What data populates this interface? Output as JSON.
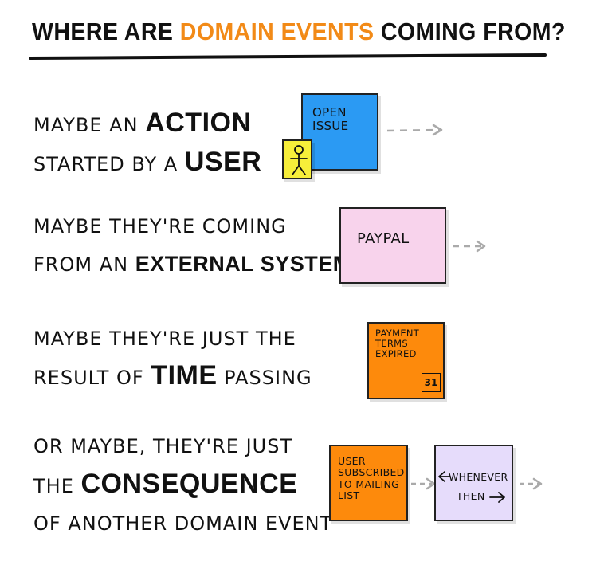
{
  "title": {
    "prefix": "WHERE ARE ",
    "highlight": "DOMAIN EVENTS",
    "suffix": " COMING FROM?",
    "highlight_color": "#f28a17"
  },
  "rows": [
    {
      "line1_a": "MAYBE AN ",
      "line1_b": "ACTION",
      "line2_a": "STARTED BY A ",
      "line2_b": "USER"
    },
    {
      "line1_a": "MAYBE THEY'RE COMING",
      "line2_a": "FROM AN ",
      "line2_b": "EXTERNAL SYSTEM"
    },
    {
      "line1_a": "MAYBE THEY'RE JUST THE",
      "line2_a": "RESULT OF ",
      "line2_b": "TIME",
      "line2_c": " PASSING"
    },
    {
      "line1_a": "OR MAYBE, THEY'RE JUST",
      "line2_a": "THE ",
      "line2_b": "CONSEQUENCE",
      "line3_a": "OF ANOTHER DOMAIN EVENT"
    }
  ],
  "stickies": {
    "open_issue": {
      "text": "OPEN ISSUE",
      "color": "#2b9af3"
    },
    "user_actor": {
      "color": "#f7ee3a",
      "icon": "stick-figure-icon"
    },
    "paypal": {
      "text": "PAYPAL",
      "color": "#f8d3ec"
    },
    "payment_terms": {
      "text": "PAYMENT TERMS EXPIRED",
      "calendar_day": "31",
      "color": "#fd8a0c"
    },
    "user_subscribed": {
      "text": "USER SUBSCRIBED TO MAILING LIST",
      "color": "#fd8a0c"
    },
    "policy": {
      "line1": "WHENEVER",
      "line2": "THEN",
      "color": "#e6dcfb"
    }
  }
}
